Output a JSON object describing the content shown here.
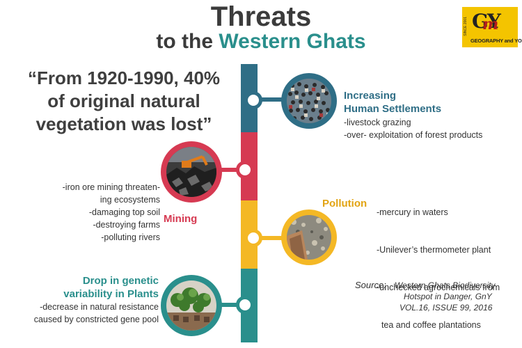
{
  "title": {
    "line1": "Threats",
    "line2_prefix": "to the",
    "line2_accent": "Western Ghats"
  },
  "logo": {
    "mark": "GY",
    "overlay": "m",
    "subtitle": "GEOGRAPHY and YOU",
    "since": "SINCE 2001"
  },
  "quote": {
    "lines": [
      "“From 1920-1990, 40%",
      "of original natural",
      "vegetation was lost”"
    ]
  },
  "threats": {
    "settlements": {
      "heading": [
        "Increasing",
        "Human Settlements"
      ],
      "points": [
        "-livestock grazing",
        "-over- exploitation of forest products"
      ]
    },
    "mining": {
      "heading": "Mining",
      "points": [
        "-iron ore mining threaten-",
        "ing ecosystems",
        "-damaging top soil",
        "-destroying farms",
        "-polluting rivers"
      ]
    },
    "pollution": {
      "heading": "Pollution",
      "points": [
        "-mercury in waters",
        "-Unilever’s thermometer plant",
        "-unchecked agrochemicals from",
        "  tea and coffee plantations"
      ]
    },
    "genetic": {
      "heading": [
        "Drop in genetic",
        "variability in Plants"
      ],
      "points": [
        "-decrease in natural resistance",
        "caused by constricted gene pool"
      ]
    }
  },
  "source": {
    "label": "Source:",
    "lines": [
      "Western Ghats Biodiversity",
      "Hotspot in Danger, GnY",
      "VOL.16, ISSUE 99, 2016"
    ]
  },
  "colors": {
    "teal": "#2a8f8c",
    "blue": "#2f6e86",
    "red": "#d63a52",
    "yellow": "#f4b825",
    "dark_text": "#3b3b3b"
  }
}
